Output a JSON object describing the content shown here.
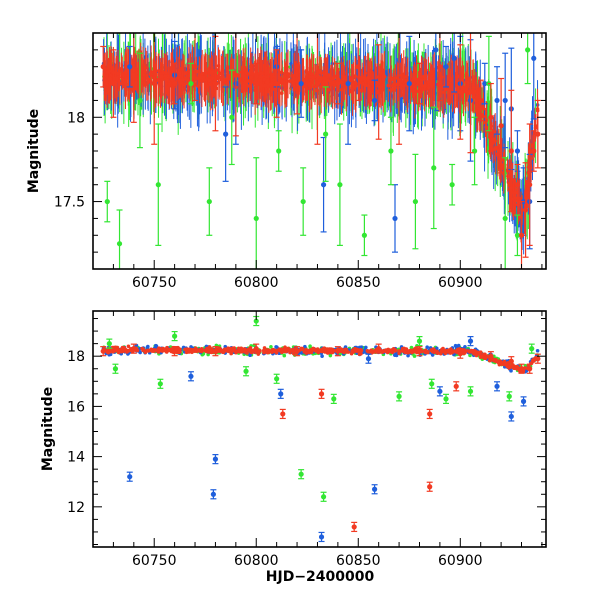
{
  "figure": {
    "x_label": "HJD−2400000",
    "colors": {
      "blue": "#1f5fdc",
      "green": "#33e633",
      "red": "#f23a22",
      "axes": "#000000"
    }
  },
  "chart_data": [
    {
      "type": "scatter",
      "panel": "top",
      "xlabel": "HJD−2400000",
      "ylabel": "Magnitude",
      "xlim": [
        60720,
        60942
      ],
      "ylim": [
        18.5,
        17.1
      ],
      "y_inverted": true,
      "xticks": [
        60750,
        60800,
        60850,
        60900
      ],
      "yticks": [
        17.5,
        18
      ],
      "series": [
        {
          "color": "blue",
          "x": [
            60738,
            60760,
            60785,
            60790,
            60810,
            60822,
            60833,
            60845,
            60858,
            60868,
            60875,
            60888,
            60893,
            60897,
            60900,
            60905,
            60912,
            60918,
            60922,
            60925,
            60928,
            60931,
            60934,
            60936
          ],
          "y": [
            18.3,
            18.25,
            17.9,
            18.2,
            18.3,
            18.2,
            17.6,
            18.2,
            18.1,
            17.4,
            18.2,
            18.4,
            18.3,
            18.35,
            18.2,
            18.1,
            18.2,
            18.1,
            18.1,
            18.05,
            17.8,
            17.5,
            17.5,
            18.35
          ]
        },
        {
          "color": "green",
          "x": [
            60727,
            60733,
            60743,
            60752,
            60768,
            60777,
            60788,
            60800,
            60811,
            60823,
            60834,
            60841,
            60853,
            60866,
            60878,
            60887,
            60896,
            60907,
            60914,
            60922,
            60928,
            60933
          ],
          "y": [
            17.5,
            17.25,
            18.1,
            17.6,
            18.2,
            17.5,
            18.0,
            17.4,
            17.8,
            17.5,
            17.9,
            17.6,
            17.3,
            17.8,
            17.5,
            17.7,
            17.6,
            17.8,
            18.2,
            17.4,
            17.3,
            18.4
          ]
        },
        {
          "color": "red",
          "x": [
            60725,
            60730,
            60740,
            60750,
            60760,
            60770,
            60780,
            60790,
            60800,
            60810,
            60820,
            60830,
            60840,
            60850,
            60860,
            60870,
            60880,
            60890,
            60900,
            60905,
            60910,
            60915,
            60920,
            60925,
            60928,
            60930,
            60932,
            60934,
            60936,
            60938
          ],
          "y": [
            18.3,
            18.2,
            18.25,
            18.2,
            18.2,
            18.3,
            18.2,
            18.25,
            18.2,
            18.2,
            18.3,
            18.2,
            18.2,
            18.3,
            18.15,
            18.2,
            18.2,
            18.3,
            18.15,
            18.15,
            18.1,
            18.0,
            17.95,
            17.8,
            17.6,
            17.3,
            17.45,
            17.6,
            17.8,
            17.9
          ]
        }
      ]
    },
    {
      "type": "scatter",
      "panel": "bottom",
      "xlabel": "HJD−2400000",
      "ylabel": "Magnitude",
      "xlim": [
        60720,
        60942
      ],
      "ylim": [
        19.8,
        10.4
      ],
      "y_inverted": true,
      "xticks": [
        60750,
        60800,
        60850,
        60900
      ],
      "yticks": [
        12,
        14,
        16,
        18
      ],
      "series": [
        {
          "color": "blue",
          "x": [
            60738,
            60779,
            60780,
            60832,
            60858,
            60925,
            60931,
            60768,
            60812,
            60855,
            60890,
            60905,
            60918
          ],
          "y": [
            13.2,
            12.5,
            13.9,
            10.8,
            12.7,
            15.6,
            16.2,
            17.2,
            16.5,
            17.9,
            16.6,
            18.6,
            16.8
          ]
        },
        {
          "color": "green",
          "x": [
            60822,
            60833,
            60753,
            60795,
            60838,
            60870,
            60893,
            60905,
            60924,
            60731,
            60810,
            60886,
            60728,
            60760,
            60800,
            60880,
            60935
          ],
          "y": [
            13.3,
            12.4,
            16.9,
            17.4,
            16.3,
            16.4,
            16.3,
            16.6,
            16.4,
            17.5,
            17.1,
            16.9,
            18.5,
            18.8,
            19.4,
            18.6,
            18.3
          ]
        },
        {
          "color": "red",
          "x": [
            60848,
            60885,
            60813,
            60885,
            60832,
            60898,
            60725,
            60740,
            60760,
            60780,
            60800,
            60820,
            60840,
            60860,
            60880,
            60900,
            60915,
            60925,
            60930,
            60934,
            60938
          ],
          "y": [
            11.2,
            12.8,
            15.7,
            15.7,
            16.5,
            16.8,
            18.2,
            18.3,
            18.2,
            18.2,
            18.3,
            18.2,
            18.2,
            18.3,
            18.2,
            18.1,
            18.0,
            17.8,
            17.5,
            17.5,
            17.9
          ]
        }
      ]
    }
  ]
}
